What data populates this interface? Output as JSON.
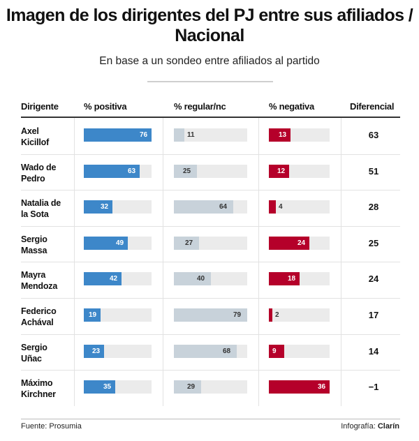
{
  "chart_data": {
    "type": "table",
    "title": "Imagen de los dirigentes del PJ entre sus afiliados / Nacional",
    "subtitle": "En base a un sondeo entre afiliados al partido",
    "columns": [
      "Dirigente",
      "% positiva",
      "% regular/nc",
      "% negativa",
      "Diferencial"
    ],
    "rows": [
      {
        "name_line1": "Axel",
        "name_line2": "Kicillof",
        "positiva": 76,
        "regular": 11,
        "negativa": 13,
        "diferencial": "63"
      },
      {
        "name_line1": "Wado de",
        "name_line2": "Pedro",
        "positiva": 63,
        "regular": 25,
        "negativa": 12,
        "diferencial": "51"
      },
      {
        "name_line1": "Natalia de",
        "name_line2": "la Sota",
        "positiva": 32,
        "regular": 64,
        "negativa": 4,
        "diferencial": "28"
      },
      {
        "name_line1": "Sergio",
        "name_line2": "Massa",
        "positiva": 49,
        "regular": 27,
        "negativa": 24,
        "diferencial": "25"
      },
      {
        "name_line1": "Mayra",
        "name_line2": "Mendoza",
        "positiva": 42,
        "regular": 40,
        "negativa": 18,
        "diferencial": "24"
      },
      {
        "name_line1": "Federico",
        "name_line2": "Achával",
        "positiva": 19,
        "regular": 79,
        "negativa": 2,
        "diferencial": "17"
      },
      {
        "name_line1": "Sergio",
        "name_line2": "Uñac",
        "positiva": 23,
        "regular": 68,
        "negativa": 9,
        "diferencial": "14"
      },
      {
        "name_line1": "Máximo",
        "name_line2": "Kirchner",
        "positiva": 35,
        "regular": 29,
        "negativa": 36,
        "diferencial": "−1"
      }
    ],
    "colors": {
      "positiva": "#3d87c9",
      "regular": "#c8d2da",
      "negativa": "#b5002a",
      "track": "#ebebeb"
    }
  },
  "footer": {
    "source": "Fuente: Prosumia",
    "credit_prefix": "Infografía: ",
    "credit_brand": "Clarín"
  }
}
